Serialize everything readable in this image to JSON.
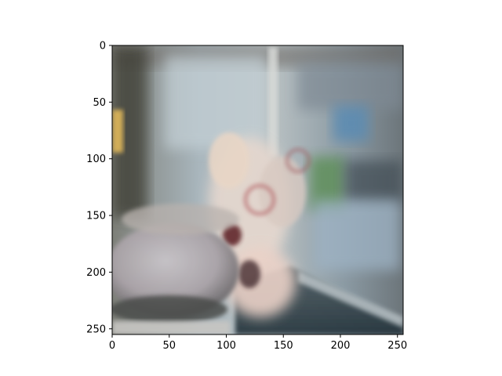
{
  "figure": {
    "kind": "image-plot",
    "description_hidden": true,
    "x_axis": {
      "min": 0,
      "max": 255,
      "ticks": [
        {
          "value": 0,
          "label": "0"
        },
        {
          "value": 50,
          "label": "50"
        },
        {
          "value": 100,
          "label": "100"
        },
        {
          "value": 150,
          "label": "150"
        },
        {
          "value": 200,
          "label": "200"
        },
        {
          "value": 250,
          "label": "250"
        }
      ]
    },
    "y_axis": {
      "min": 0,
      "max": 255,
      "inverted": true,
      "ticks": [
        {
          "value": 0,
          "label": "0"
        },
        {
          "value": 50,
          "label": "50"
        },
        {
          "value": 100,
          "label": "100"
        },
        {
          "value": 150,
          "label": "150"
        },
        {
          "value": 200,
          "label": "200"
        },
        {
          "value": 250,
          "label": "250"
        }
      ]
    }
  }
}
